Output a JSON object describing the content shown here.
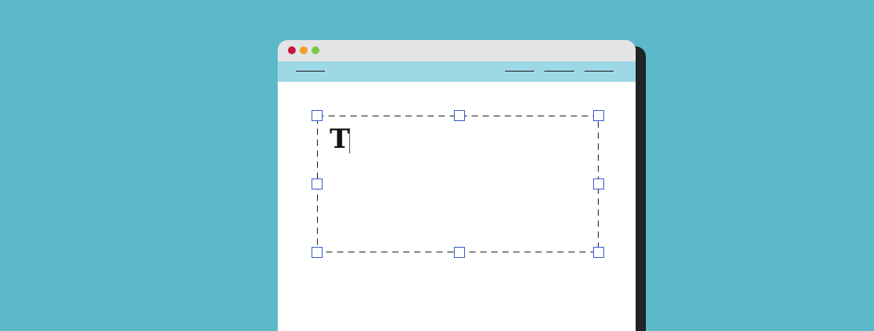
{
  "colors": {
    "background": "#5bb9ca",
    "titlebar": "#e4e4e6",
    "navbar": "#9dd8e5",
    "window": "#ffffff",
    "shadow": "#1f2424",
    "close": "#c8193f",
    "minimize": "#efa023",
    "maximize": "#78c84a",
    "handle_border": "#3a57cf"
  },
  "icons": {
    "close": "close-dot-icon",
    "minimize": "minimize-dot-icon",
    "maximize": "maximize-dot-icon",
    "handle": "resize-handle-icon"
  },
  "editor": {
    "text_value": "T"
  }
}
